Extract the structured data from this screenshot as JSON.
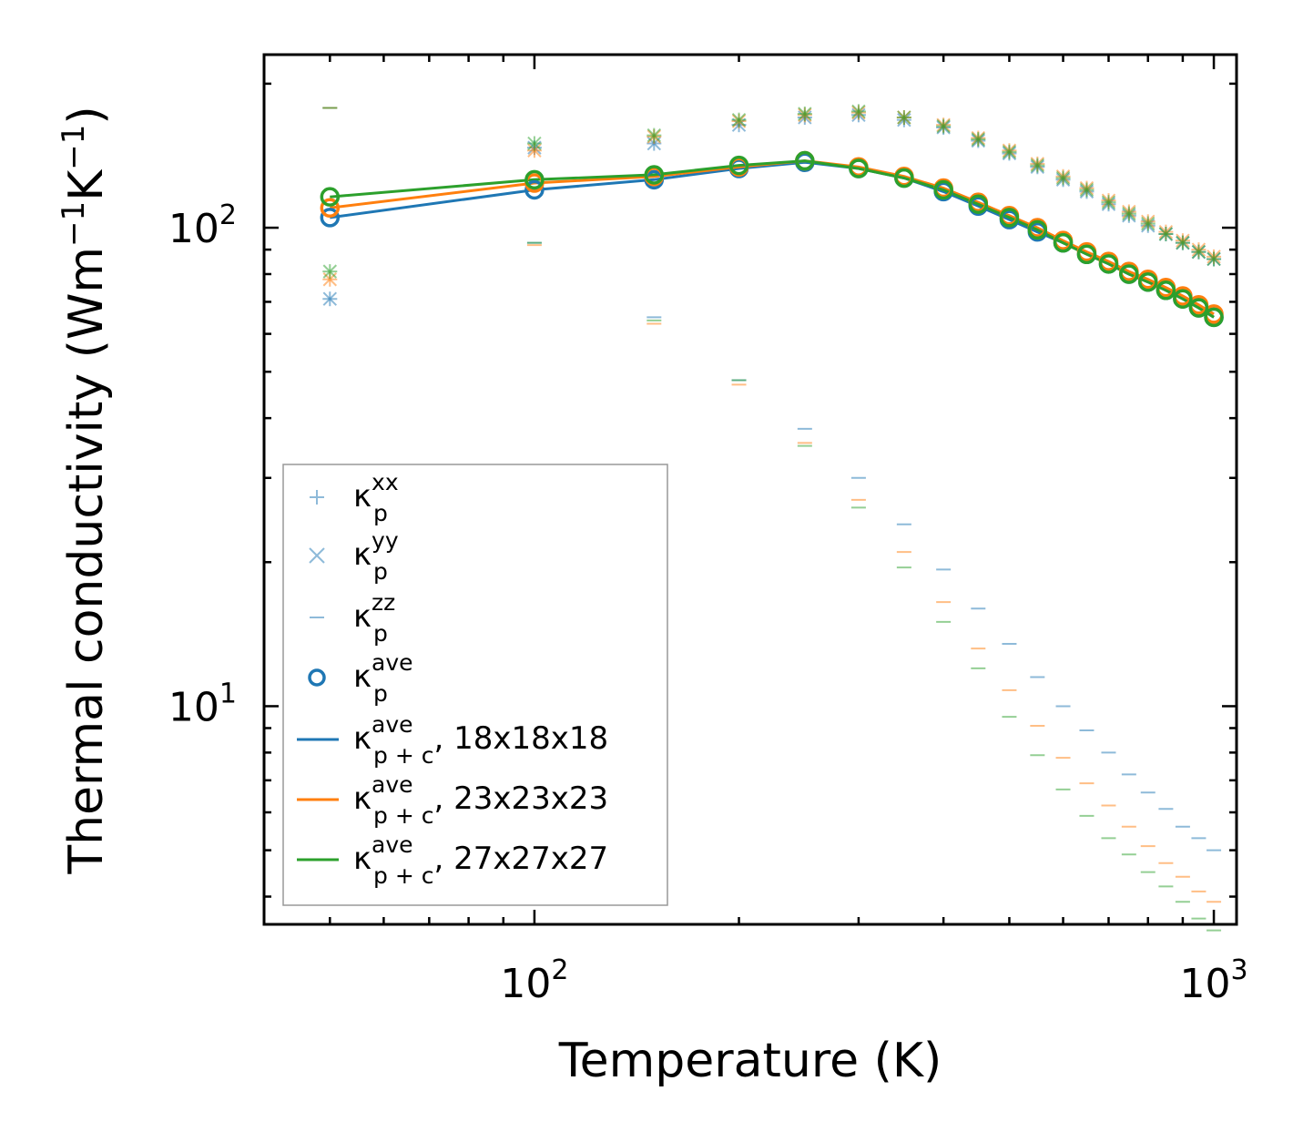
{
  "chart_data": {
    "type": "scatter",
    "xscale": "log",
    "yscale": "log",
    "xlim": [
      40,
      1080
    ],
    "ylim": [
      3.5,
      230
    ],
    "xlabel": "Temperature (K)",
    "ylabel": {
      "main": "Thermal conductivity (Wm",
      "sup1": "−1",
      "mid": "K",
      "sup2": "−1",
      "end": ")"
    },
    "x_ticks": [
      {
        "value": 100,
        "base": "10",
        "exp": "2"
      },
      {
        "value": 1000,
        "base": "10",
        "exp": "3"
      }
    ],
    "y_ticks": [
      {
        "value": 10,
        "base": "10",
        "exp": "1"
      },
      {
        "value": 100,
        "base": "10",
        "exp": "2"
      }
    ],
    "colors": {
      "blue": "#1f77b4",
      "orange": "#ff7f0e",
      "green": "#2ca02c"
    },
    "temperatures": [
      50,
      100,
      150,
      200,
      250,
      300,
      350,
      400,
      450,
      500,
      550,
      600,
      650,
      700,
      750,
      800,
      850,
      900,
      950,
      1000
    ],
    "series": [
      {
        "name": "18x18x18",
        "color_key": "blue",
        "kxx": [
          71,
          147,
          150,
          164,
          170,
          172,
          168,
          162,
          152,
          143,
          134,
          126,
          119,
          112,
          106,
          101,
          97,
          93,
          89,
          86
        ],
        "kyy": [
          71,
          147,
          150,
          164,
          170,
          172,
          168,
          162,
          152,
          143,
          134,
          126,
          119,
          112,
          106,
          101,
          97,
          93,
          89,
          86
        ],
        "kzz": [
          178,
          93,
          65,
          48,
          38,
          30,
          24,
          19.3,
          16,
          13.5,
          11.5,
          10,
          8.9,
          8,
          7.2,
          6.6,
          6.1,
          5.6,
          5.3,
          5.0
        ],
        "kp_ave": [
          105,
          120,
          126,
          133,
          137,
          133,
          127,
          119,
          111,
          104,
          98,
          93,
          88,
          84,
          80,
          77,
          74,
          71,
          68,
          65
        ],
        "kpc_ave": [
          105,
          120,
          126,
          133,
          137,
          133,
          127,
          119,
          111,
          104,
          98,
          93,
          88,
          84,
          80,
          77,
          74,
          71,
          68,
          65
        ]
      },
      {
        "name": "23x23x23",
        "color_key": "orange",
        "kxx": [
          78,
          145,
          155,
          167,
          172,
          174,
          170,
          164,
          154,
          145,
          136,
          128,
          121,
          114,
          108,
          103,
          98,
          94,
          90,
          87
        ],
        "kyy": [
          78,
          145,
          155,
          167,
          172,
          174,
          170,
          164,
          154,
          145,
          136,
          128,
          121,
          114,
          108,
          103,
          98,
          94,
          90,
          87
        ],
        "kzz": [
          178,
          92,
          63,
          47,
          35.5,
          27,
          21,
          16.5,
          13.2,
          10.8,
          9.1,
          7.8,
          6.9,
          6.2,
          5.6,
          5.1,
          4.7,
          4.4,
          4.1,
          3.9
        ],
        "kp_ave": [
          110,
          124,
          128,
          134,
          138,
          134,
          128,
          121,
          113,
          106,
          100,
          94,
          89,
          85,
          81,
          78,
          75,
          72,
          69,
          66
        ],
        "kpc_ave": [
          110,
          124,
          128,
          134,
          138,
          134,
          128,
          121,
          113,
          106,
          100,
          94,
          89,
          85,
          81,
          78,
          75,
          72,
          69,
          66
        ]
      },
      {
        "name": "27x27x27",
        "color_key": "green",
        "kxx": [
          81,
          150,
          156,
          168,
          173,
          175,
          170,
          163,
          153,
          144,
          135,
          127,
          120,
          113,
          107,
          102,
          97,
          93,
          89,
          86
        ],
        "kyy": [
          81,
          150,
          156,
          168,
          173,
          175,
          170,
          163,
          153,
          144,
          135,
          127,
          120,
          113,
          107,
          102,
          97,
          93,
          89,
          86
        ],
        "kzz": [
          178,
          93,
          64,
          48,
          35,
          26,
          19.5,
          15,
          12,
          9.5,
          7.9,
          6.7,
          5.9,
          5.3,
          4.9,
          4.5,
          4.2,
          3.9,
          3.6,
          3.4
        ],
        "kp_ave": [
          116,
          126,
          129,
          135,
          138,
          133,
          127,
          120,
          112,
          105,
          99,
          93,
          88,
          84,
          80,
          77,
          74,
          71,
          68,
          65
        ],
        "kpc_ave": [
          116,
          126,
          129,
          135,
          138,
          133,
          127,
          120,
          112,
          105,
          99,
          93,
          88,
          84,
          80,
          77,
          74,
          71,
          68,
          65
        ]
      }
    ],
    "legend": {
      "placement": "lower-left",
      "entries": [
        {
          "marker": "plus",
          "color_key": "blue",
          "base": "κ",
          "sup": "xx",
          "sub": "p",
          "suffix": ""
        },
        {
          "marker": "x",
          "color_key": "blue",
          "base": "κ",
          "sup": "yy",
          "sub": "p",
          "suffix": ""
        },
        {
          "marker": "dash",
          "color_key": "blue",
          "base": "κ",
          "sup": "zz",
          "sub": "p",
          "suffix": ""
        },
        {
          "marker": "circle",
          "color_key": "blue",
          "base": "κ",
          "sup": "ave",
          "sub": "p",
          "suffix": ""
        },
        {
          "marker": "line",
          "color_key": "blue",
          "base": "κ",
          "sup": "ave",
          "sub": "p + c",
          "suffix": ", 18x18x18"
        },
        {
          "marker": "line",
          "color_key": "orange",
          "base": "κ",
          "sup": "ave",
          "sub": "p + c",
          "suffix": ", 23x23x23"
        },
        {
          "marker": "line",
          "color_key": "green",
          "base": "κ",
          "sup": "ave",
          "sub": "p + c",
          "suffix": ", 27x27x27"
        }
      ]
    }
  }
}
